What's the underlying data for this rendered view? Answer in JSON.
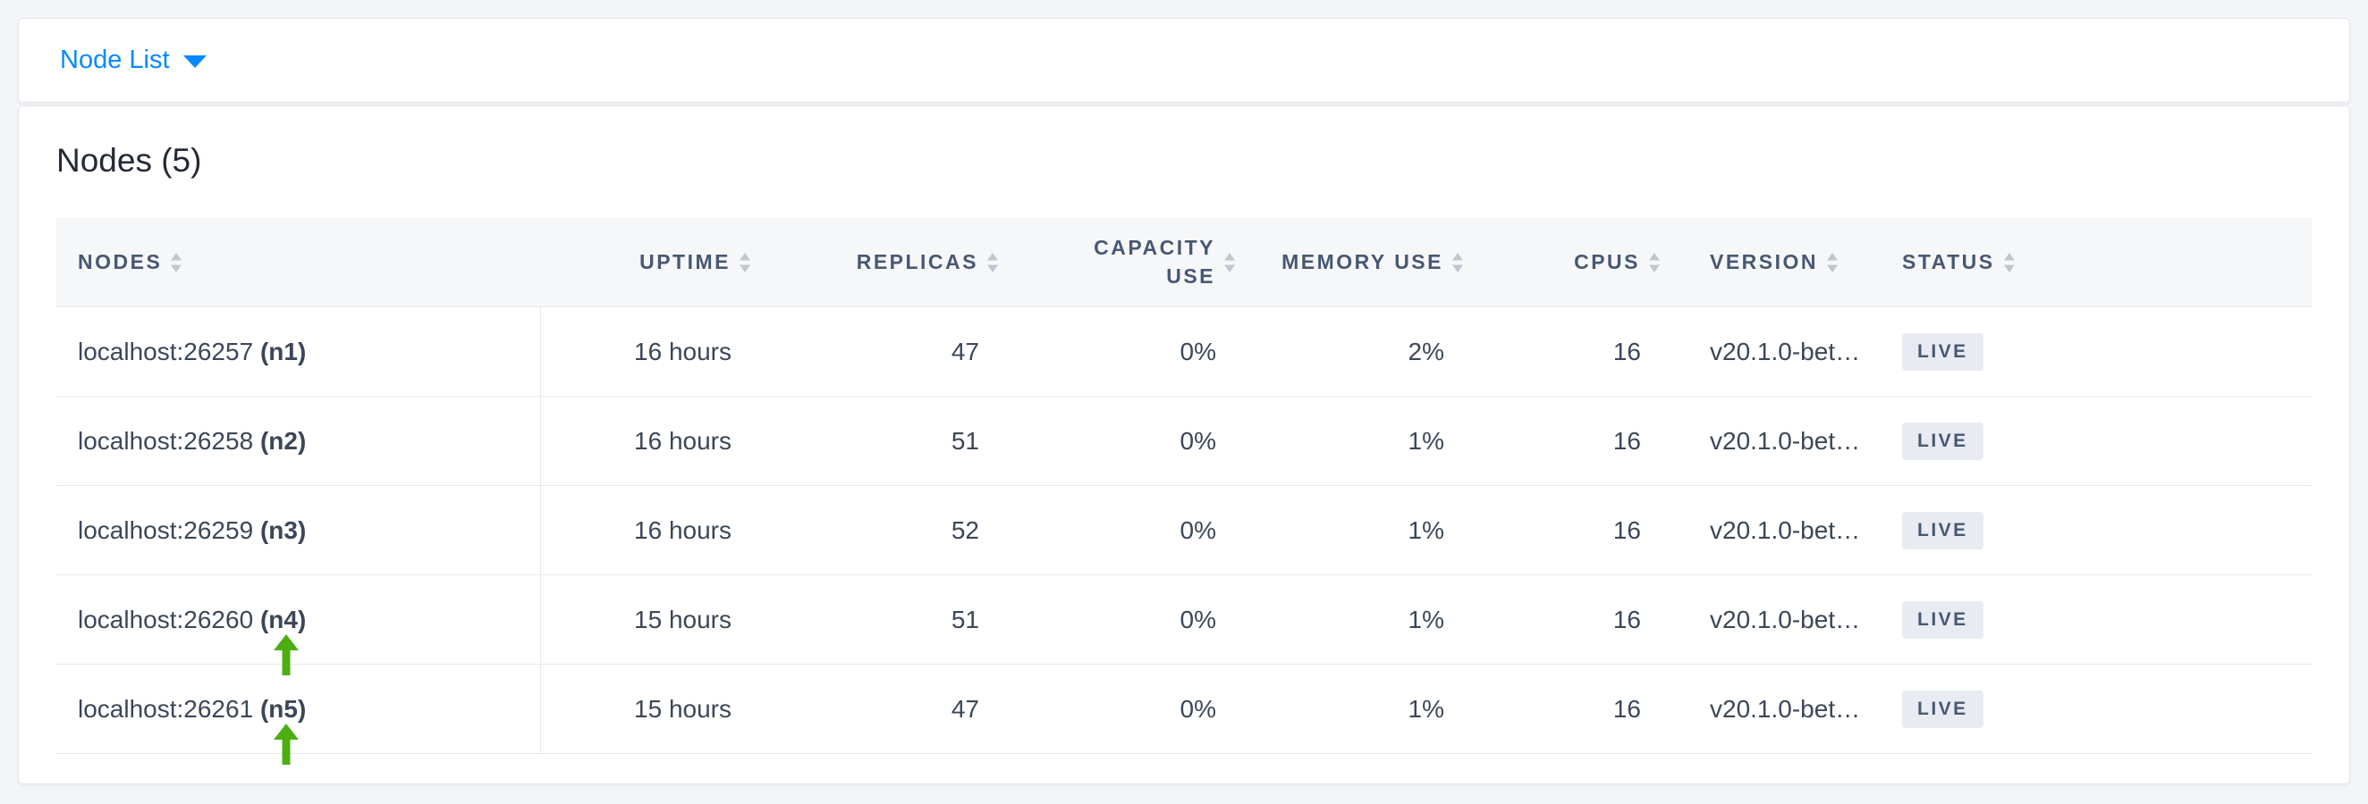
{
  "selector_bar": {
    "label": "Node List"
  },
  "main": {
    "title": "Nodes (5)"
  },
  "table": {
    "columns": [
      {
        "id": "nodes",
        "label": "Nodes",
        "align": "left",
        "sortable": true
      },
      {
        "id": "uptime",
        "label": "Uptime",
        "align": "right",
        "sortable": true
      },
      {
        "id": "replicas",
        "label": "Replicas",
        "align": "right",
        "sortable": true
      },
      {
        "id": "capacity",
        "label": "Capacity Use",
        "align": "right",
        "sortable": true
      },
      {
        "id": "memory",
        "label": "Memory Use",
        "align": "right",
        "sortable": true
      },
      {
        "id": "cpus",
        "label": "CPUs",
        "align": "right",
        "sortable": true
      },
      {
        "id": "version",
        "label": "Version",
        "align": "left",
        "sortable": true
      },
      {
        "id": "status",
        "label": "Status",
        "align": "left",
        "sortable": true
      }
    ],
    "rows": [
      {
        "address": "localhost:26257",
        "node": "(n1)",
        "uptime": "16 hours",
        "replicas": "47",
        "capacity": "0%",
        "memory": "2%",
        "cpus": "16",
        "version": "v20.1.0-bet…",
        "status": "LIVE",
        "arrow": false
      },
      {
        "address": "localhost:26258",
        "node": "(n2)",
        "uptime": "16 hours",
        "replicas": "51",
        "capacity": "0%",
        "memory": "1%",
        "cpus": "16",
        "version": "v20.1.0-bet…",
        "status": "LIVE",
        "arrow": false
      },
      {
        "address": "localhost:26259",
        "node": "(n3)",
        "uptime": "16 hours",
        "replicas": "52",
        "capacity": "0%",
        "memory": "1%",
        "cpus": "16",
        "version": "v20.1.0-bet…",
        "status": "LIVE",
        "arrow": false
      },
      {
        "address": "localhost:26260",
        "node": "(n4)",
        "uptime": "15 hours",
        "replicas": "51",
        "capacity": "0%",
        "memory": "1%",
        "cpus": "16",
        "version": "v20.1.0-bet…",
        "status": "LIVE",
        "arrow": true
      },
      {
        "address": "localhost:26261",
        "node": "(n5)",
        "uptime": "15 hours",
        "replicas": "47",
        "capacity": "0%",
        "memory": "1%",
        "cpus": "16",
        "version": "v20.1.0-bet…",
        "status": "LIVE",
        "arrow": true
      }
    ]
  },
  "colors": {
    "accent_blue": "#0788ff",
    "badge_bg": "#e8ebf2",
    "badge_text": "#475872",
    "header_text": "#475872",
    "body_text": "#3b4758",
    "arrow_green": "#4cae10",
    "page_bg": "#f4f5f9",
    "row_border": "#e7e8ee",
    "header_bg": "#f6f7f9"
  }
}
